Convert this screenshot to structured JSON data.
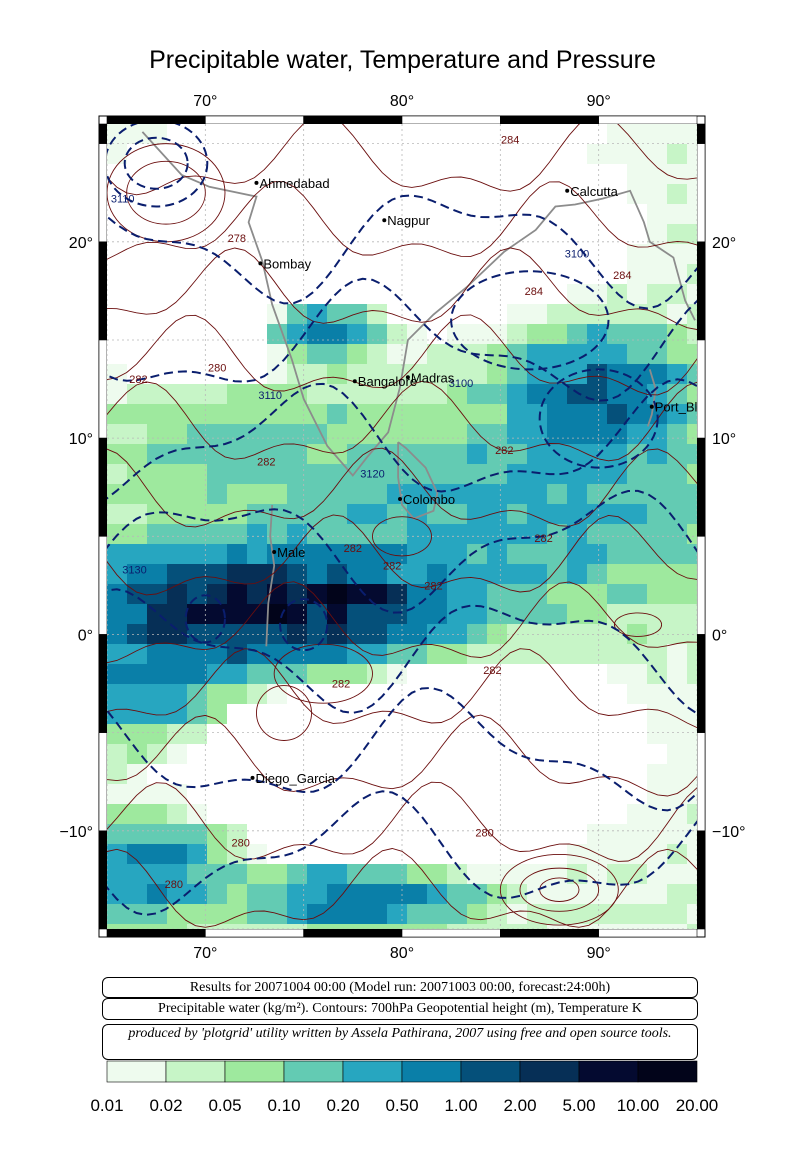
{
  "title": "Precipitable water, Temperature and Pressure",
  "map": {
    "lon_range": [
      65,
      95
    ],
    "lat_range": [
      -15,
      26
    ],
    "lon_ticks": [
      70,
      80,
      90
    ],
    "lat_ticks": [
      -10,
      0,
      10,
      20
    ],
    "lon_tick_labels": [
      "70°",
      "80°",
      "90°"
    ],
    "lat_tick_labels": [
      "−10°",
      "0°",
      "10°",
      "20°"
    ],
    "cities": [
      {
        "name": "Ahmedabad",
        "lon": 72.6,
        "lat": 23.0
      },
      {
        "name": "Calcutta",
        "lon": 88.4,
        "lat": 22.6
      },
      {
        "name": "Nagpur",
        "lon": 79.1,
        "lat": 21.1
      },
      {
        "name": "Bombay",
        "lon": 72.8,
        "lat": 18.9
      },
      {
        "name": "Madras",
        "lon": 80.3,
        "lat": 13.1
      },
      {
        "name": "Bangalore",
        "lon": 77.6,
        "lat": 12.9
      },
      {
        "name": "Port_Blair",
        "lon": 92.7,
        "lat": 11.6
      },
      {
        "name": "Colombo",
        "lon": 79.9,
        "lat": 6.9
      },
      {
        "name": "Male",
        "lon": 73.5,
        "lat": 4.2
      },
      {
        "name": "Diego_Garcia",
        "lon": 72.4,
        "lat": -7.3
      }
    ],
    "contour_labels": [
      {
        "text": "284",
        "lon": 85.5,
        "lat": 25
      },
      {
        "text": "3110",
        "lon": 65.8,
        "lat": 22
      },
      {
        "text": "278",
        "lon": 71.6,
        "lat": 20
      },
      {
        "text": "3100",
        "lon": 88.9,
        "lat": 19.2
      },
      {
        "text": "284",
        "lon": 91.2,
        "lat": 18.1
      },
      {
        "text": "284",
        "lon": 86.7,
        "lat": 17.3
      },
      {
        "text": "280",
        "lon": 70.6,
        "lat": 13.4
      },
      {
        "text": "282",
        "lon": 66.6,
        "lat": 12.8
      },
      {
        "text": "3110",
        "lon": 73.3,
        "lat": 12.0
      },
      {
        "text": "3100",
        "lon": 83.0,
        "lat": 12.6
      },
      {
        "text": "282",
        "lon": 85.2,
        "lat": 9.2
      },
      {
        "text": "282",
        "lon": 73.1,
        "lat": 8.6
      },
      {
        "text": "3120",
        "lon": 78.5,
        "lat": 8.0
      },
      {
        "text": "282",
        "lon": 77.5,
        "lat": 4.2
      },
      {
        "text": "282",
        "lon": 87.2,
        "lat": 4.7
      },
      {
        "text": "282",
        "lon": 79.5,
        "lat": 3.3
      },
      {
        "text": "3130",
        "lon": 66.4,
        "lat": 3.1
      },
      {
        "text": "282",
        "lon": 81.6,
        "lat": 2.3
      },
      {
        "text": "282",
        "lon": 84.6,
        "lat": -2.0
      },
      {
        "text": "282",
        "lon": 76.9,
        "lat": -2.7
      },
      {
        "text": "280",
        "lon": 84.2,
        "lat": -10.3
      },
      {
        "text": "280",
        "lon": 71.8,
        "lat": -10.8
      },
      {
        "text": "280",
        "lon": 68.4,
        "lat": -12.9
      }
    ]
  },
  "info": {
    "results": "Results for 20071004 00:00 (Model run: 20071003 00:00, forecast:24:00h)",
    "legend_text": "Precipitable water (kg/m²).  Contours: 700hPa Geopotential height (m), Temperature K",
    "credit": "produced by 'plotgrid' utility written by Assela Pathirana, 2007 using free and open source tools."
  },
  "colorbar": {
    "labels": [
      "0.01",
      "0.02",
      "0.05",
      "0.10",
      "0.20",
      "0.50",
      "1.00",
      "2.00",
      "5.00",
      "10.00",
      "20.00"
    ],
    "colors": [
      "#eefbee",
      "#c7f5c7",
      "#9ee99e",
      "#63cbb3",
      "#27a6c0",
      "#0a7fa8",
      "#05507a",
      "#062f56",
      "#040a30",
      "#02041a"
    ]
  },
  "colors": {
    "temperature_contour": "#6b0e0e",
    "height_contour": "#0a1e6e",
    "coastline": "#8c8c8c",
    "grid": "#b8b8b8"
  }
}
